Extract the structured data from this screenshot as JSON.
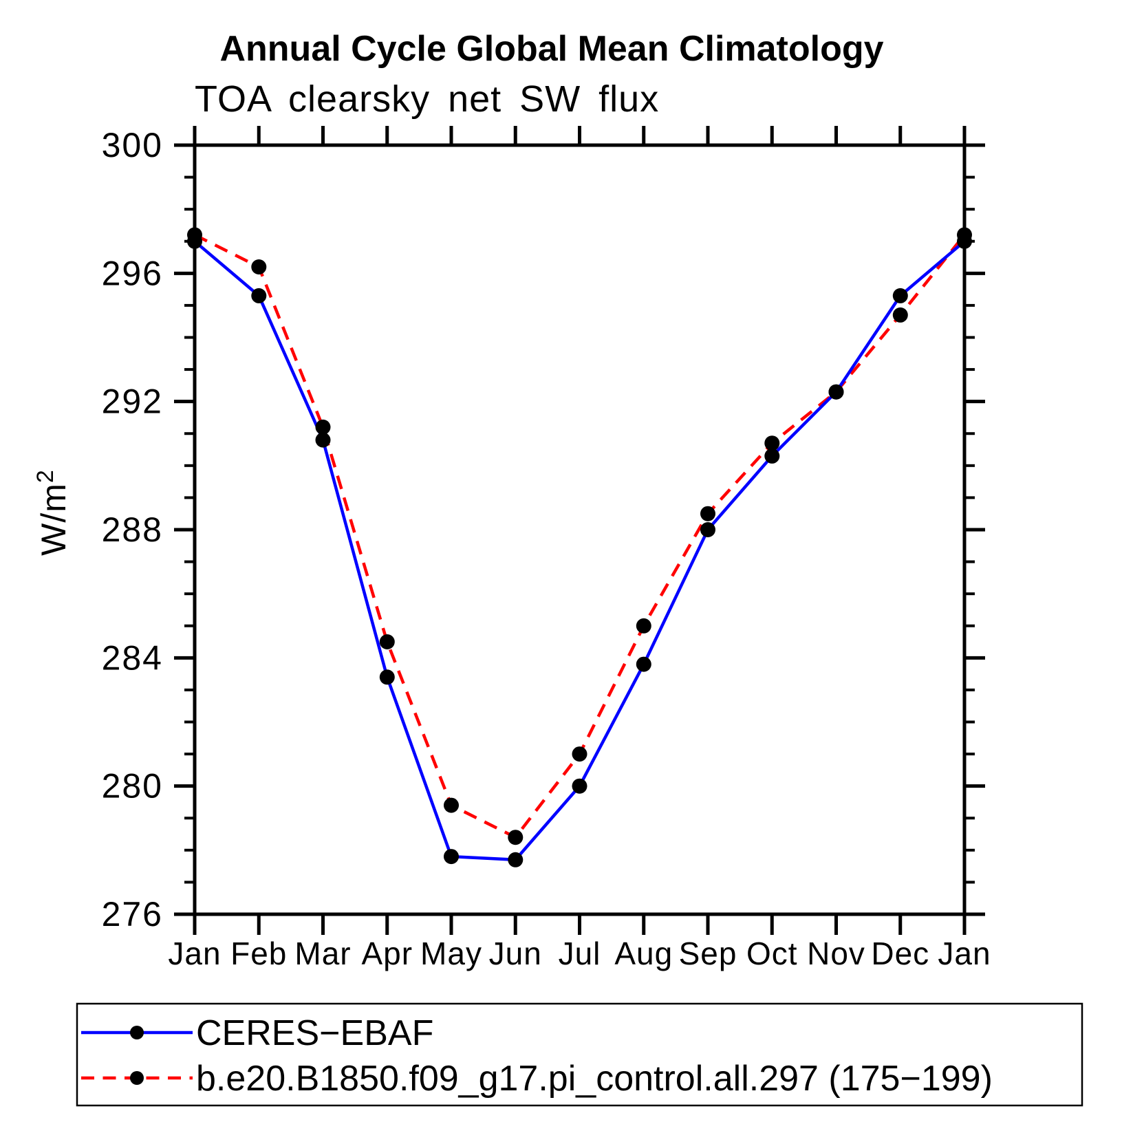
{
  "chart_data": {
    "type": "line",
    "title": "Annual Cycle Global Mean Climatology",
    "subtitle": "TOA clearsky net SW flux",
    "ylabel": "W/m²",
    "ylabel_base": "W/m",
    "ylabel_sup": "2",
    "months": [
      "Jan",
      "Feb",
      "Mar",
      "Apr",
      "May",
      "Jun",
      "Jul",
      "Aug",
      "Sep",
      "Oct",
      "Nov",
      "Dec",
      "Jan"
    ],
    "ylim": [
      276,
      300
    ],
    "yticks": [
      300,
      296,
      292,
      288,
      284,
      280,
      276
    ],
    "y_minor_step": 1,
    "grid": false,
    "legend_position": "bottom",
    "marker_color": "#000000",
    "axis_color": "#000000",
    "series": [
      {
        "name": "CERES−EBAF",
        "color": "#0000ff",
        "style": "solid",
        "marker": "circle",
        "values": [
          297.0,
          295.3,
          290.8,
          283.4,
          277.8,
          277.7,
          280.0,
          283.8,
          288.0,
          290.3,
          292.3,
          295.3,
          297.0
        ]
      },
      {
        "name": "b.e20.B1850.f09_g17.pi_control.all.297 (175−199)",
        "color": "#ff0000",
        "style": "dashed",
        "marker": "circle",
        "values": [
          297.2,
          296.2,
          291.2,
          284.5,
          279.4,
          278.4,
          281.0,
          285.0,
          288.5,
          290.7,
          292.3,
          294.7,
          297.2
        ]
      }
    ]
  }
}
